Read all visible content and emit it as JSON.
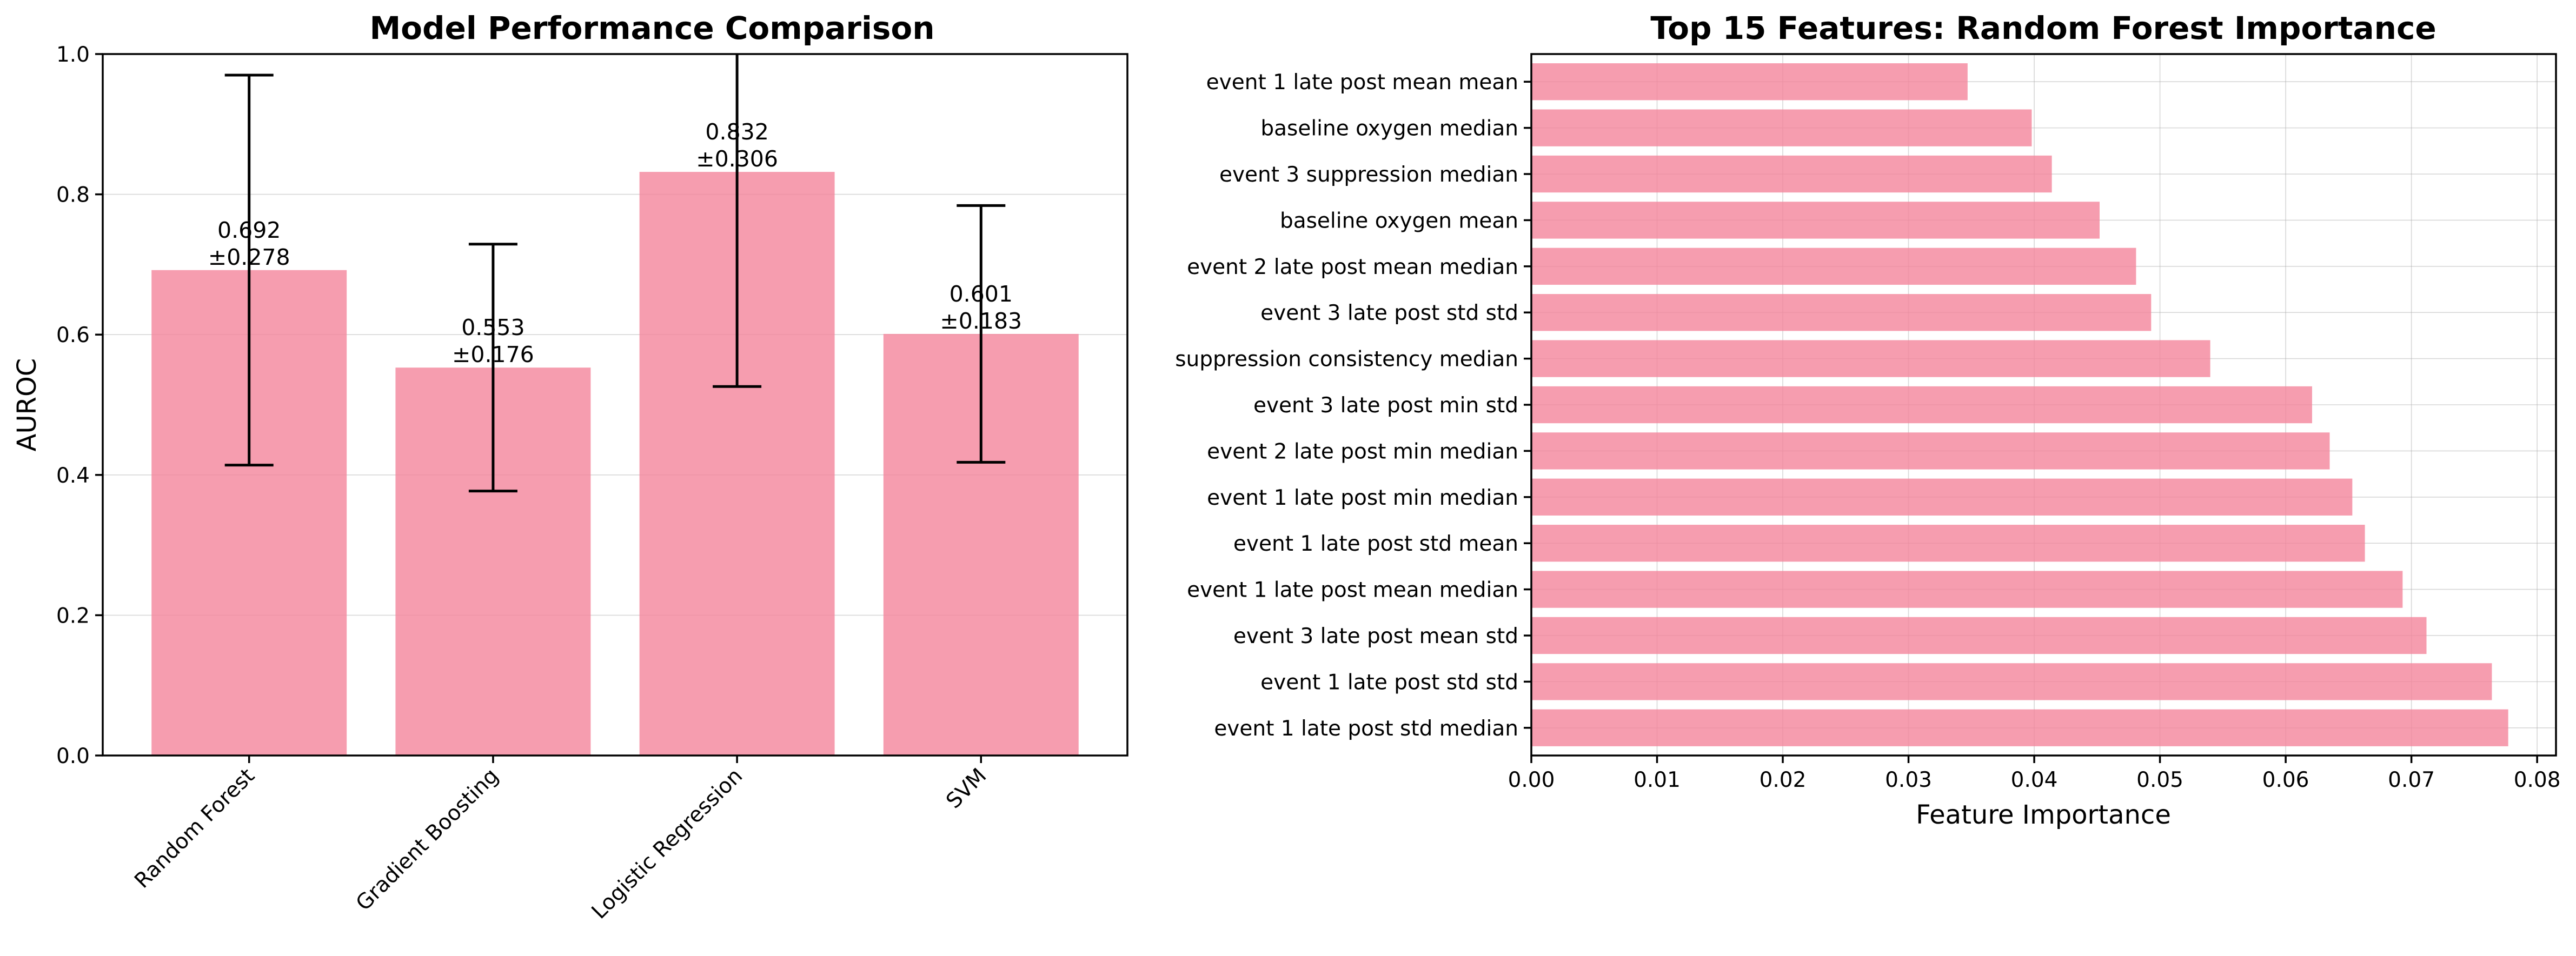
{
  "chart_data": [
    {
      "type": "bar",
      "title": "Model Performance Comparison",
      "xlabel": "",
      "ylabel": "AUROC",
      "ylim": [
        0,
        1.0
      ],
      "yticks": [
        "0.0",
        "0.2",
        "0.4",
        "0.6",
        "0.8",
        "1.0"
      ],
      "categories": [
        "Random Forest",
        "Gradient Boosting",
        "Logistic Regression",
        "SVM"
      ],
      "values": [
        0.692,
        0.553,
        0.832,
        0.601
      ],
      "errors": [
        0.278,
        0.176,
        0.306,
        0.183
      ],
      "value_labels": [
        "0.692",
        "0.553",
        "0.832",
        "0.601"
      ],
      "error_labels": [
        "±0.278",
        "±0.176",
        "±0.306",
        "±0.183"
      ],
      "grid": "y",
      "bar_color": "#f4849b",
      "bar_alpha": 0.8
    },
    {
      "type": "bar",
      "orientation": "horizontal",
      "title": "Top 15 Features: Random Forest Importance",
      "xlabel": "Feature Importance",
      "ylabel": "",
      "xlim": [
        0,
        0.0815
      ],
      "xticks": [
        "0.00",
        "0.01",
        "0.02",
        "0.03",
        "0.04",
        "0.05",
        "0.06",
        "0.07",
        "0.08"
      ],
      "categories": [
        "event 1 late post std median",
        "event 1 late post std std",
        "event 3 late post mean std",
        "event 1 late post mean median",
        "event 1 late post std mean",
        "event 1 late post min median",
        "event 2 late post min median",
        "event 3 late post min std",
        "suppression consistency median",
        "event 3 late post std std",
        "event 2 late post mean median",
        "baseline oxygen mean",
        "event 3 suppression median",
        "baseline oxygen median",
        "event 1 late post mean mean"
      ],
      "values": [
        0.0777,
        0.0764,
        0.0712,
        0.0693,
        0.0663,
        0.0653,
        0.0635,
        0.0621,
        0.054,
        0.0493,
        0.0481,
        0.0452,
        0.0414,
        0.0398,
        0.0347
      ],
      "grid": "both",
      "bar_color": "#f4849b",
      "bar_alpha": 0.8
    }
  ]
}
